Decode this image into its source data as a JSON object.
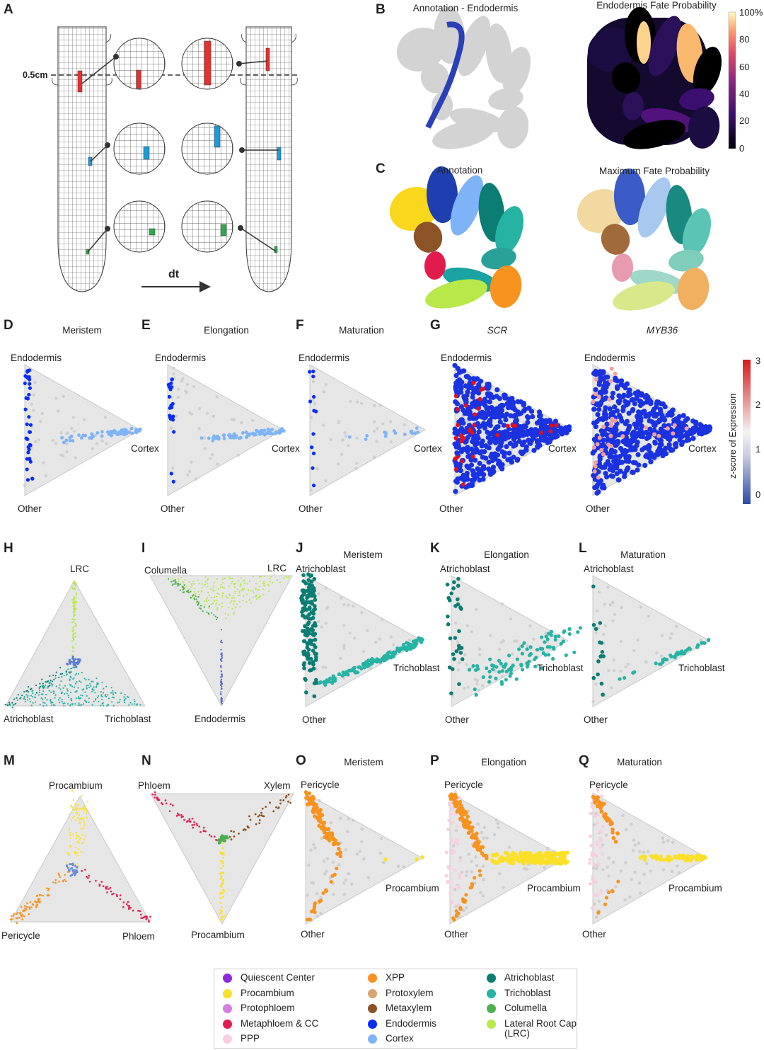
{
  "panelA": {
    "letter": "A",
    "scale_label": "0.5cm",
    "time_label": "dt",
    "colors": {
      "red": "#e8302f",
      "blue": "#1e9ad6",
      "green": "#2fa84f"
    }
  },
  "panelB": {
    "letter": "B",
    "left_title": "Annotation - Endodermis",
    "right_title": "Endodermis Fate Probability",
    "colorbar": {
      "ticks": [
        "100%",
        "80",
        "60",
        "40",
        "20",
        "0"
      ],
      "colormap": "magma"
    }
  },
  "panelC": {
    "letter": "C",
    "left_title": "Annotation",
    "right_title": "Maximum Fate Probability"
  },
  "rowD": [
    {
      "letter": "D",
      "title": "Meristem",
      "italic": false,
      "labels": [
        "Endodermis",
        "Cortex",
        "Other"
      ]
    },
    {
      "letter": "E",
      "title": "Elongation",
      "italic": false,
      "labels": [
        "Endodermis",
        "Cortex",
        "Other"
      ]
    },
    {
      "letter": "F",
      "title": "Maturation",
      "italic": false,
      "labels": [
        "Endodermis",
        "Cortex",
        "Other"
      ]
    },
    {
      "letter": "G",
      "title": "SCR",
      "italic": true,
      "labels": [
        "Endodermis",
        "Cortex",
        "Other"
      ]
    },
    {
      "letter": "",
      "title": "MYB36",
      "italic": true,
      "labels": [
        "Endodermis",
        "Cortex",
        "Other"
      ]
    }
  ],
  "zscore_colorbar": {
    "label": "z-score of Expression",
    "ticks": [
      "3",
      "2",
      "1",
      "0"
    ],
    "colors": [
      "#d7191c",
      "#f4f4f4",
      "#2c4aa8"
    ]
  },
  "rowH": [
    {
      "letter": "H",
      "labels": [
        "LRC",
        "Atrichoblast",
        "Trichoblast"
      ]
    },
    {
      "letter": "I",
      "labels": [
        "Columella",
        "LRC",
        "Endodermis"
      ]
    },
    {
      "letter": "J",
      "title": "Meristem",
      "labels": [
        "Atrichoblast",
        "Trichoblast",
        "Other"
      ]
    },
    {
      "letter": "K",
      "title": "Elongation",
      "labels": [
        "Atrichoblast",
        "Trichoblast",
        "Other"
      ]
    },
    {
      "letter": "L",
      "title": "Maturation",
      "labels": [
        "Atrichoblast",
        "Trichoblast",
        "Other"
      ]
    }
  ],
  "rowM": [
    {
      "letter": "M",
      "labels": [
        "Procambium",
        "Pericycle",
        "Phloem"
      ]
    },
    {
      "letter": "N",
      "labels": [
        "Phloem",
        "Xylem",
        "Procambium"
      ]
    },
    {
      "letter": "O",
      "title": "Meristem",
      "labels": [
        "Pericycle",
        "Procambium",
        "Other"
      ]
    },
    {
      "letter": "P",
      "title": "Elongation",
      "labels": [
        "Pericycle",
        "Procambium",
        "Other"
      ]
    },
    {
      "letter": "Q",
      "title": "Maturation",
      "labels": [
        "Pericycle",
        "Procambium",
        "Other"
      ]
    }
  ],
  "legend": [
    {
      "label": "Quiescent Center",
      "color": "#8e2bd6"
    },
    {
      "label": "Procambium",
      "color": "#fbe02a"
    },
    {
      "label": "Protophloem",
      "color": "#d57fe0"
    },
    {
      "label": "Metaphloem & CC",
      "color": "#e21b4f"
    },
    {
      "label": "PPP",
      "color": "#f7cfe0"
    },
    {
      "label": "XPP",
      "color": "#f7931e"
    },
    {
      "label": "Protoxylem",
      "color": "#d8a46f"
    },
    {
      "label": "Metaxylem",
      "color": "#8b5326"
    },
    {
      "label": "Endodermis",
      "color": "#0a2df5"
    },
    {
      "label": "Cortex",
      "color": "#7fb3f7"
    },
    {
      "label": "Atrichoblast",
      "color": "#0b7d72"
    },
    {
      "label": "Trichoblast",
      "color": "#27b3a4"
    },
    {
      "label": "Columella",
      "color": "#4caf50"
    },
    {
      "label": "Lateral Root Cap (LRC)",
      "color": "#b9e84a"
    }
  ],
  "background_color": "#dcdcdc"
}
